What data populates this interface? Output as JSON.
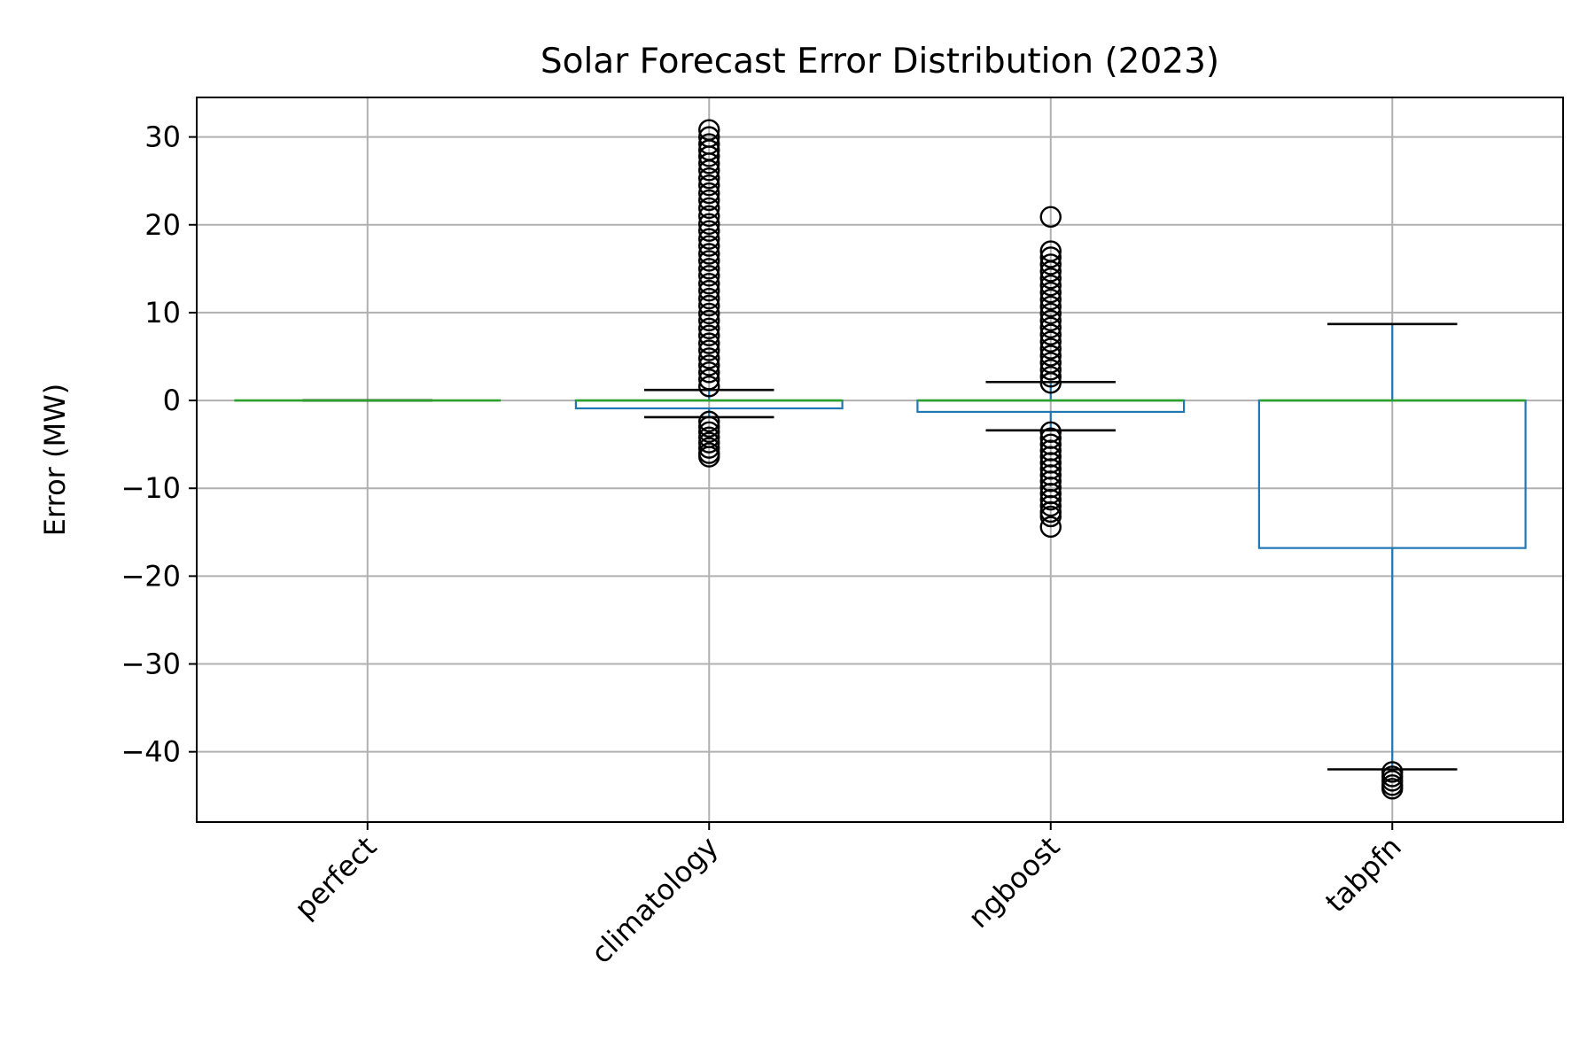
{
  "chart_data": {
    "type": "box",
    "title": "Solar Forecast Error Distribution (2023)",
    "xlabel": "",
    "ylabel": "Error (MW)",
    "ylim": [
      -48,
      34.5
    ],
    "yticks": [
      30,
      20,
      10,
      0,
      -10,
      -20,
      -30,
      -40
    ],
    "ytick_labels": [
      "30",
      "20",
      "10",
      "0",
      "−10",
      "−20",
      "−30",
      "−40"
    ],
    "grid": true,
    "categories": [
      "perfect",
      "climatology",
      "ngboost",
      "tabpfn"
    ],
    "boxes": [
      {
        "name": "perfect",
        "whisker_low": 0,
        "q1": 0,
        "median": 0,
        "q3": 0,
        "whisker_high": 0,
        "fliers": []
      },
      {
        "name": "climatology",
        "whisker_low": -1.9,
        "q1": -0.9,
        "median": 0,
        "q3": 0,
        "whisker_high": 1.2,
        "fliers": [
          30.8,
          30.0,
          29.2,
          28.5,
          27.8,
          27.0,
          26.2,
          25.3,
          24.5,
          23.6,
          22.8,
          21.9,
          21.0,
          20.1,
          19.3,
          18.4,
          17.6,
          16.7,
          15.9,
          15.0,
          14.2,
          13.3,
          12.5,
          11.6,
          10.8,
          9.9,
          9.1,
          8.2,
          7.4,
          6.5,
          5.7,
          4.8,
          4.0,
          3.2,
          2.4,
          1.6,
          -2.4,
          -3.0,
          -3.6,
          -4.2,
          -4.8,
          -5.4,
          -6.0,
          -6.4
        ]
      },
      {
        "name": "ngboost",
        "whisker_low": -3.4,
        "q1": -1.3,
        "median": 0,
        "q3": 0,
        "whisker_high": 2.1,
        "fliers": [
          20.9,
          17.0,
          16.3,
          15.5,
          14.7,
          13.9,
          13.1,
          12.3,
          11.5,
          10.7,
          9.9,
          9.1,
          8.3,
          7.5,
          6.7,
          5.9,
          5.1,
          4.3,
          3.5,
          2.7,
          2.0,
          -3.6,
          -4.3,
          -5.0,
          -5.7,
          -6.4,
          -7.1,
          -7.8,
          -8.5,
          -9.2,
          -9.9,
          -10.6,
          -11.3,
          -12.0,
          -12.7,
          -13.2,
          -14.4
        ]
      },
      {
        "name": "tabpfn",
        "whisker_low": -42.0,
        "q1": -16.8,
        "median": 0,
        "q3": 0,
        "whisker_high": 8.7,
        "fliers": [
          -42.3,
          -42.8,
          -43.3,
          -43.8,
          -44.2
        ]
      }
    ]
  }
}
